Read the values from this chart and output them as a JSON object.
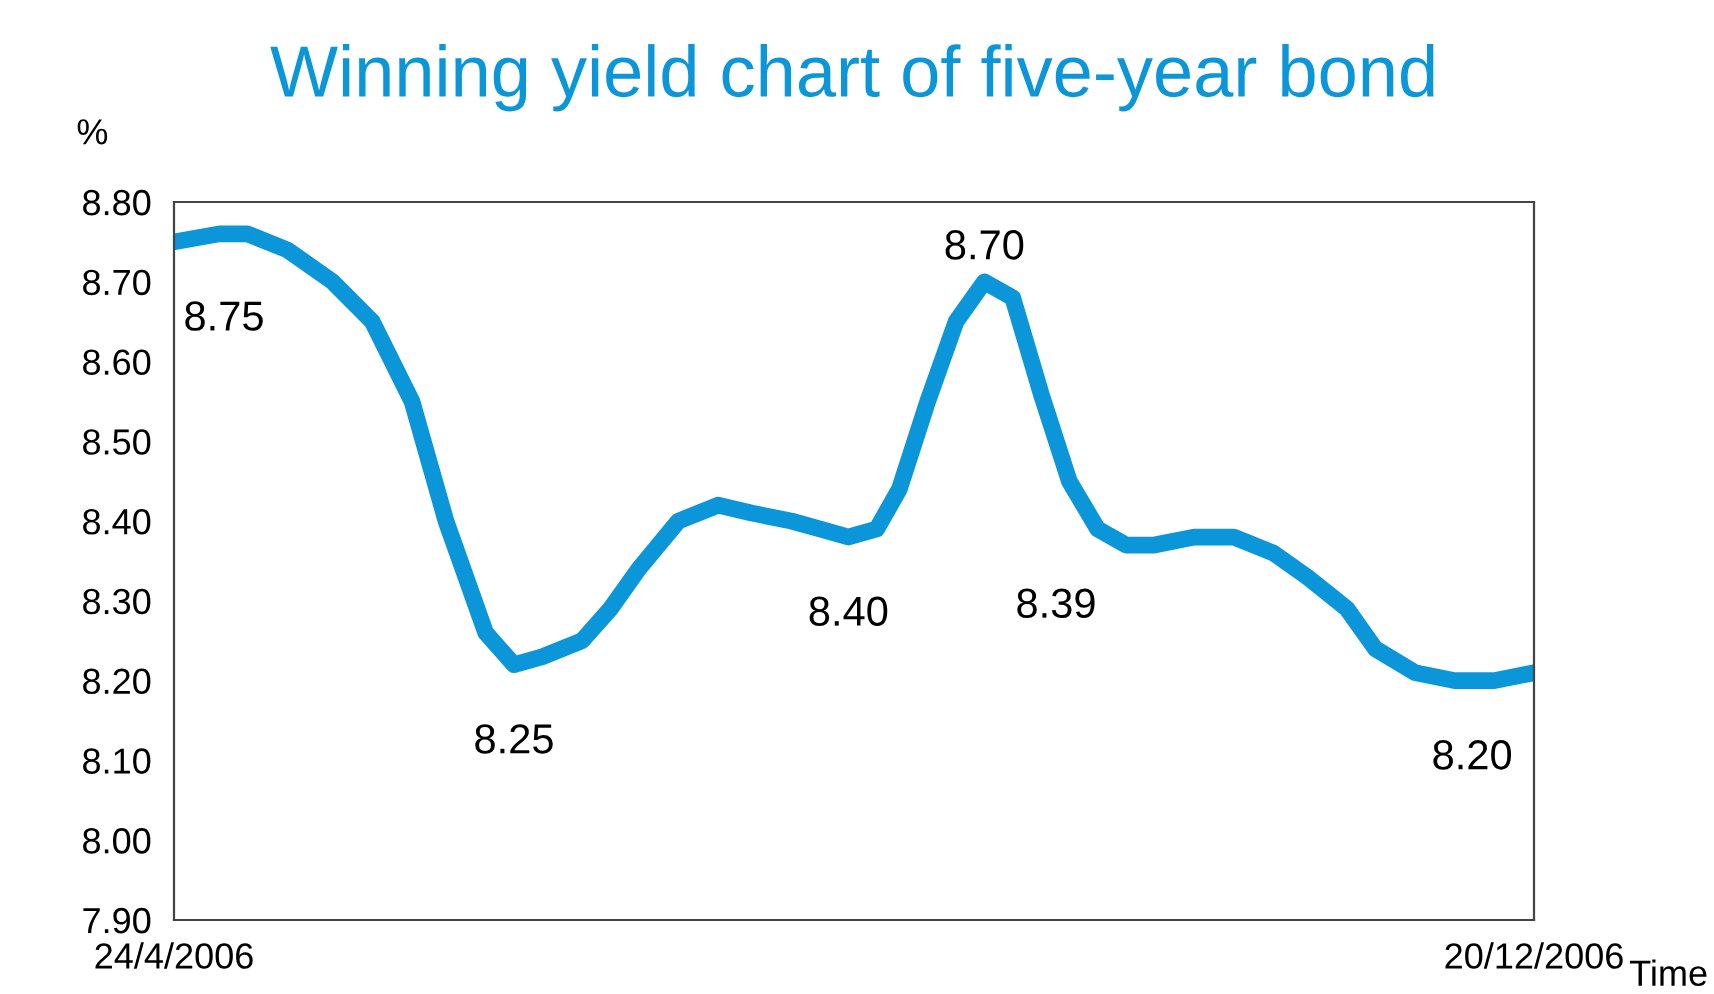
{
  "chart_data": {
    "type": "line",
    "title": "Winning yield chart of five-year bond",
    "xlabel": "Time",
    "ylabel": "%",
    "x": [
      "2006-04-24",
      "2006-05-02",
      "2006-05-07",
      "2006-05-14",
      "2006-05-22",
      "2006-05-29",
      "2006-06-05",
      "2006-06-11",
      "2006-06-18",
      "2006-06-23",
      "2006-06-28",
      "2006-07-05",
      "2006-07-10",
      "2006-07-15",
      "2006-07-22",
      "2006-07-29",
      "2006-08-04",
      "2006-08-11",
      "2006-08-16",
      "2006-08-21",
      "2006-08-26",
      "2006-08-30",
      "2006-09-04",
      "2006-09-09",
      "2006-09-14",
      "2006-09-19",
      "2006-09-24",
      "2006-09-29",
      "2006-10-04",
      "2006-10-09",
      "2006-10-14",
      "2006-10-21",
      "2006-10-28",
      "2006-11-04",
      "2006-11-10",
      "2006-11-17",
      "2006-11-22",
      "2006-11-29",
      "2006-12-06",
      "2006-12-13",
      "2006-12-20"
    ],
    "series": [
      {
        "color": "#0a96d8",
        "values": [
          8.75,
          8.76,
          8.76,
          8.74,
          8.7,
          8.65,
          8.55,
          8.4,
          8.26,
          8.22,
          8.23,
          8.25,
          8.29,
          8.34,
          8.4,
          8.42,
          8.41,
          8.4,
          8.39,
          8.38,
          8.39,
          8.44,
          8.55,
          8.65,
          8.7,
          8.68,
          8.56,
          8.45,
          8.39,
          8.37,
          8.37,
          8.38,
          8.38,
          8.36,
          8.33,
          8.29,
          8.24,
          8.21,
          8.2,
          8.2,
          8.21
        ]
      }
    ],
    "annotations": [
      {
        "text": "8.75",
        "x": "2006-04-24",
        "y": 8.75
      },
      {
        "text": "8.25",
        "x": "2006-06-23",
        "y": 8.22
      },
      {
        "text": "8.40",
        "x": "2006-08-21",
        "y": 8.38
      },
      {
        "text": "8.70",
        "x": "2006-09-14",
        "y": 8.7
      },
      {
        "text": "8.39",
        "x": "2006-10-04",
        "y": 8.39
      },
      {
        "text": "8.20",
        "x": "2006-12-13",
        "y": 8.2
      }
    ],
    "xlim": [
      "2006-04-24",
      "2006-12-20"
    ],
    "xticks": [
      {
        "value": "2006-04-24",
        "label": "24/4/2006"
      },
      {
        "value": "2006-12-20",
        "label": "20/12/2006"
      }
    ],
    "ylim": [
      7.9,
      8.8
    ],
    "yticks": [
      {
        "value": 7.9,
        "label": "7.90"
      },
      {
        "value": 8.0,
        "label": "8.00"
      },
      {
        "value": 8.1,
        "label": "8.10"
      },
      {
        "value": 8.2,
        "label": "8.20"
      },
      {
        "value": 8.3,
        "label": "8.30"
      },
      {
        "value": 8.4,
        "label": "8.40"
      },
      {
        "value": 8.5,
        "label": "8.50"
      },
      {
        "value": 8.6,
        "label": "8.60"
      },
      {
        "value": 8.7,
        "label": "8.70"
      },
      {
        "value": 8.8,
        "label": "8.80"
      }
    ],
    "grid": false,
    "legend": false,
    "marker": "none",
    "line_style": "solid"
  }
}
